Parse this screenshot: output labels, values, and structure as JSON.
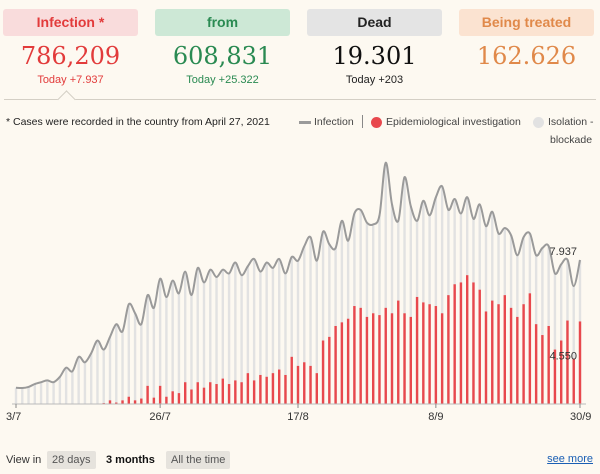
{
  "stats": [
    {
      "label": "Infection *",
      "value": "786,209",
      "delta": "Today +7.937",
      "bg": "#f9dcdc",
      "fg": "#e23b3b",
      "num_color": "#e23b3b",
      "delta_color": "#e23b3b"
    },
    {
      "label": "from",
      "value": "608,831",
      "delta": "Today +25.322",
      "bg": "#cde8d6",
      "fg": "#2a8a52",
      "num_color": "#2a8a52",
      "delta_color": "#2a8a52"
    },
    {
      "label": "Dead",
      "value": "19.301",
      "delta": "Today +203",
      "bg": "#e4e4e4",
      "fg": "#222222",
      "num_color": "#111111",
      "delta_color": "#222222"
    },
    {
      "label": "Being treated",
      "value": "162.626",
      "delta": "",
      "bg": "#fbe3d1",
      "fg": "#e0894a",
      "num_color": "#e0894a",
      "delta_color": "#e0894a"
    }
  ],
  "note": "* Cases were recorded in the country from April 27, 2021",
  "legend": {
    "infection": "Infection",
    "epidemiological": "Epidemiological investigation",
    "isolation_line1": "Isolation -",
    "isolation_line2": "blockade"
  },
  "chart_data": {
    "type": "bar",
    "x_ticks": [
      "3/7",
      "26/7",
      "17/8",
      "8/9",
      "30/9"
    ],
    "series": [
      {
        "name": "Infection",
        "type": "line",
        "color": "#9a9a9a"
      },
      {
        "name": "Epidemiological investigation",
        "type": "bar",
        "color": "#e8484d"
      },
      {
        "name": "Isolation - blockade",
        "type": "bar",
        "color": "#e2e2e2"
      }
    ],
    "infection": [
      900,
      880,
      940,
      1100,
      1200,
      1300,
      1200,
      1500,
      2000,
      1800,
      2600,
      2300,
      2800,
      3500,
      3000,
      3700,
      4400,
      4000,
      5500,
      5000,
      4400,
      6000,
      5300,
      6900,
      5900,
      6800,
      6100,
      7300,
      6000,
      7500,
      6700,
      7400,
      7000,
      7400,
      7200,
      7800,
      7100,
      7600,
      8000,
      7300,
      7800,
      7500,
      8000,
      7200,
      8100,
      7900,
      8700,
      9200,
      7900,
      9500,
      8800,
      8600,
      10100,
      9000,
      10500,
      10700,
      10000,
      9900,
      10400,
      13300,
      11000,
      10100,
      12500,
      10900,
      10100,
      11200,
      10400,
      11400,
      12000,
      10700,
      11300,
      10500,
      11400,
      10200,
      11000,
      9800,
      10600,
      9400,
      9700,
      9300,
      8200,
      9200,
      9400,
      8200,
      8600,
      8700,
      7200,
      7700,
      7950,
      6500,
      7937
    ],
    "epidemiological": [
      0,
      0,
      0,
      0,
      0,
      0,
      0,
      0,
      0,
      0,
      0,
      0,
      0,
      0,
      50,
      200,
      80,
      200,
      400,
      200,
      300,
      1000,
      350,
      1000,
      400,
      700,
      600,
      1200,
      800,
      1200,
      900,
      1200,
      1100,
      1400,
      1100,
      1300,
      1200,
      1700,
      1300,
      1600,
      1500,
      1700,
      1900,
      1600,
      2600,
      2100,
      2300,
      2100,
      1700,
      3500,
      3700,
      4300,
      4500,
      4700,
      5400,
      5300,
      4800,
      5000,
      4900,
      5300,
      5000,
      5700,
      5000,
      4800,
      5900,
      5600,
      5500,
      5400,
      5000,
      6000,
      6600,
      6700,
      7100,
      6700,
      6300,
      5100,
      5700,
      5500,
      6000,
      5300,
      4800,
      5500,
      6100,
      4400,
      3800,
      4300,
      3000,
      3500,
      4600,
      2500,
      4550
    ],
    "ylim": [
      0,
      14000
    ],
    "annotations": [
      "7.937",
      "4.550"
    ],
    "grid": false,
    "legend_position": "top-right"
  },
  "footer": {
    "view_in": "View in",
    "options": [
      "28 days",
      "3 months",
      "All the time"
    ],
    "active": "3 months",
    "see_more": "see more"
  }
}
